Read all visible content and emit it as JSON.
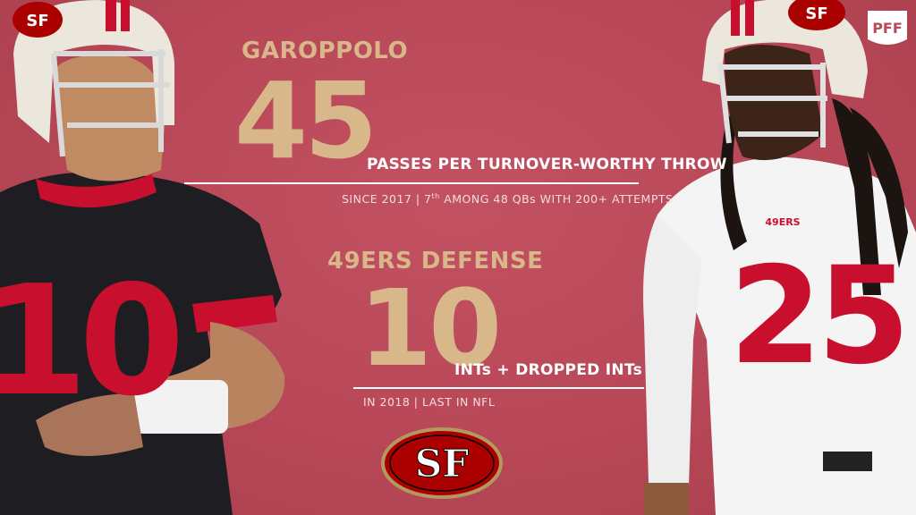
{
  "colors": {
    "background": "#b94a58",
    "gold": "#d8b88a",
    "white": "#ffffff",
    "team_red": "#aa0000"
  },
  "stat1": {
    "name": "GAROPPOLO",
    "value": "45",
    "description": "PASSES PER TURNOVER-WORTHY THROW",
    "subtitle_pre": "SINCE 2017 | 7",
    "subtitle_sup": "th",
    "subtitle_post": " AMONG 48 QBs WITH 200+ ATTEMPTS"
  },
  "stat2": {
    "name": "49ERS DEFENSE",
    "value": "10",
    "description": "INTs + DROPPED INTs",
    "subtitle": "IN 2018 | LAST IN NFL"
  },
  "logo": {
    "text": "SF"
  },
  "brand": {
    "text": "PFF"
  },
  "players": {
    "left": {
      "jersey_number": "10"
    },
    "right": {
      "jersey_number": "25",
      "chest_text": "49ERS"
    }
  },
  "icons": [
    "pff-logo-icon",
    "49ers-logo-icon"
  ]
}
